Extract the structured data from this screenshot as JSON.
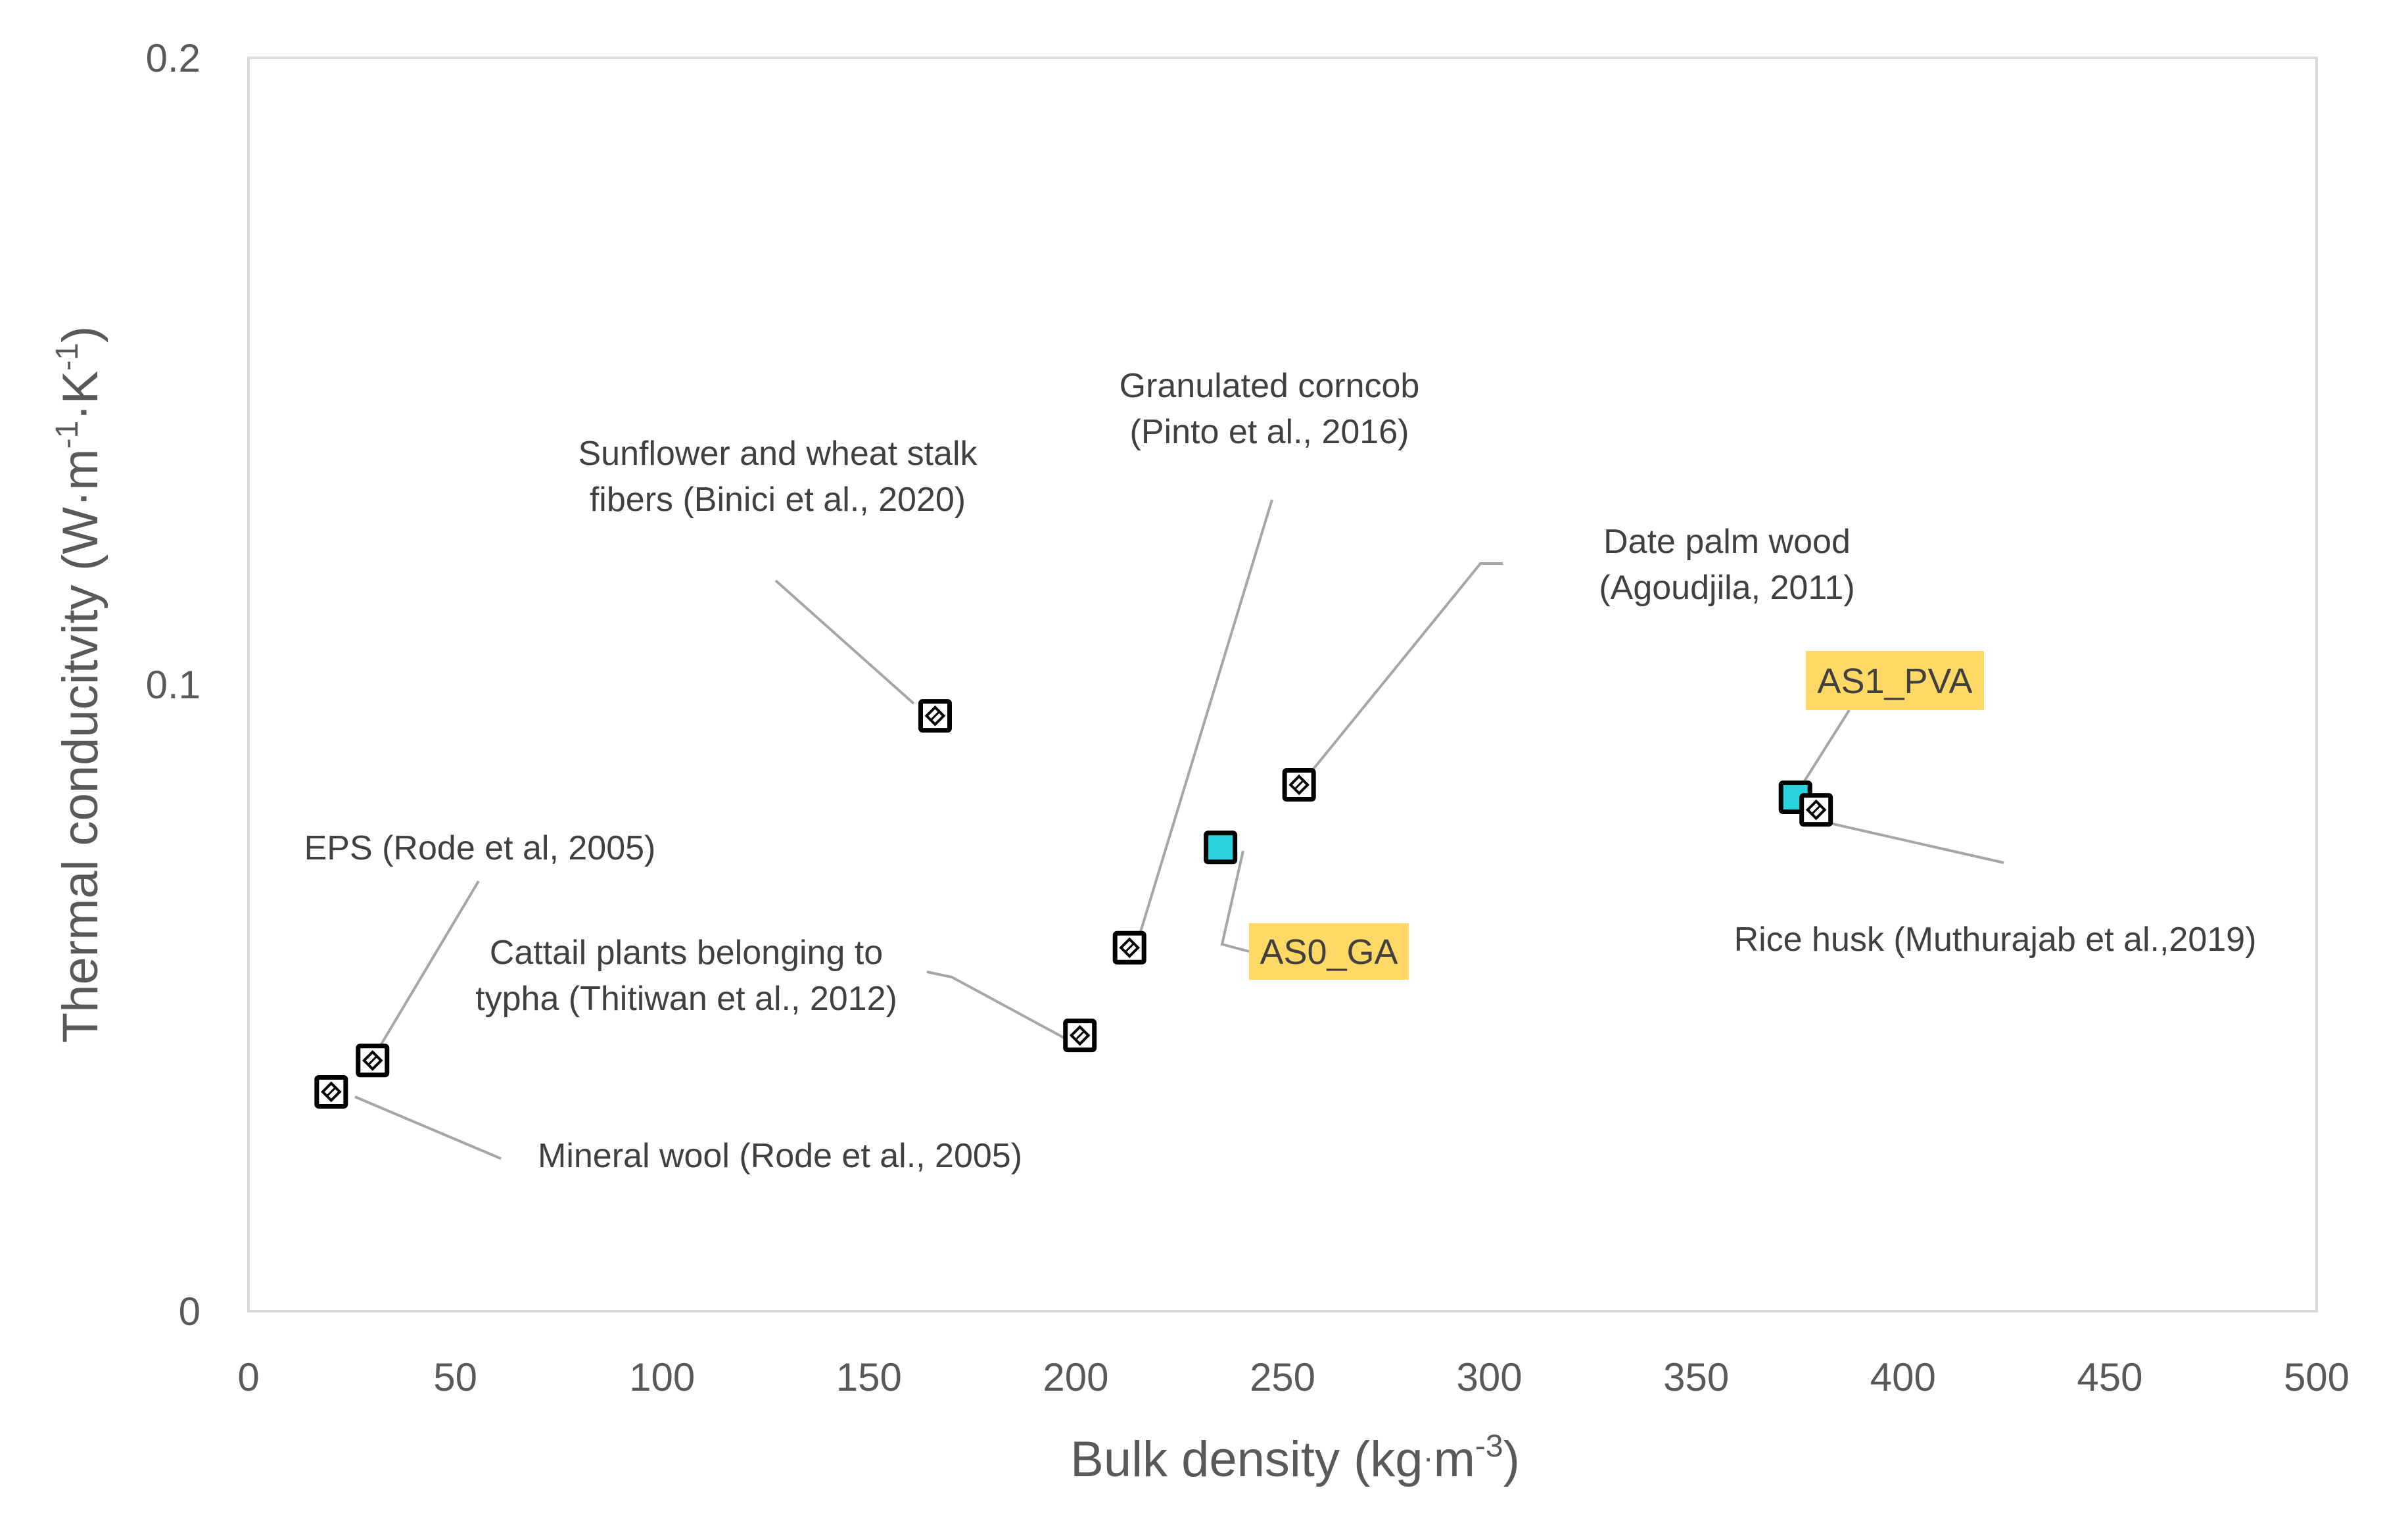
{
  "chart_data": {
    "type": "scatter",
    "title": "",
    "xlabel": {
      "main": "Bulk density (kg",
      "dot": "·",
      "unit": "m",
      "sup": "-3",
      "close": ")"
    },
    "ylabel": {
      "main": "Thermal conducitvity (W",
      "dot1": "·",
      "m": "m",
      "sup1": "-1",
      "dot2": "·",
      "k": "K",
      "sup2": "-1",
      "close": ")"
    },
    "xlim": [
      0,
      500
    ],
    "ylim": [
      0,
      0.2
    ],
    "xticks": [
      0,
      50,
      100,
      150,
      200,
      250,
      300,
      350,
      400,
      450,
      500
    ],
    "xtick_labels": [
      "0",
      "50",
      "100",
      "150",
      "200",
      "250",
      "300",
      "350",
      "400",
      "450",
      "500"
    ],
    "yticks": [
      0,
      0.1,
      0.2
    ],
    "ytick_labels": [
      "0",
      "0.1",
      "0.2"
    ],
    "grid": false,
    "colors": {
      "highlight_fill": "#FFD966",
      "marker_cyan": "#29D3DE",
      "marker_white": "#FFFFFF",
      "axis_text": "#595959",
      "leader": "#A6A6A6"
    },
    "points": [
      {
        "name": "mineral-wool",
        "x": 20,
        "y": 0.035,
        "highlight": false,
        "label_lines": [
          "Mineral wool (Rode et al., 2005)"
        ]
      },
      {
        "name": "eps",
        "x": 30,
        "y": 0.04,
        "highlight": false,
        "label_lines": [
          "EPS (Rode et al, 2005)"
        ]
      },
      {
        "name": "sunflower-wheat",
        "x": 166,
        "y": 0.095,
        "highlight": false,
        "label_lines": [
          "Sunflower and wheat stalk",
          "fibers (Binici et al., 2020)"
        ]
      },
      {
        "name": "cattail-typha",
        "x": 201,
        "y": 0.044,
        "highlight": false,
        "label_lines": [
          "Cattail plants belonging to",
          "typha  (Thitiwan et al., 2012)"
        ]
      },
      {
        "name": "granulated-corncob",
        "x": 213,
        "y": 0.058,
        "highlight": false,
        "label_lines": [
          "Granulated corncob",
          "(Pinto et al.,  2016)"
        ]
      },
      {
        "name": "as0-ga",
        "x": 235,
        "y": 0.074,
        "highlight": true,
        "label_lines": [
          "AS0_GA"
        ]
      },
      {
        "name": "date-palm",
        "x": 254,
        "y": 0.084,
        "highlight": false,
        "label_lines": [
          "Date palm wood",
          "(Agoudjila, 2011)"
        ]
      },
      {
        "name": "as1-pva",
        "x": 374,
        "y": 0.082,
        "highlight": true,
        "label_lines": [
          "AS1_PVA"
        ]
      },
      {
        "name": "rice-husk",
        "x": 379,
        "y": 0.08,
        "highlight": false,
        "label_lines": [
          "Rice husk (Muthurajab  et  al.,2019)"
        ]
      }
    ]
  }
}
